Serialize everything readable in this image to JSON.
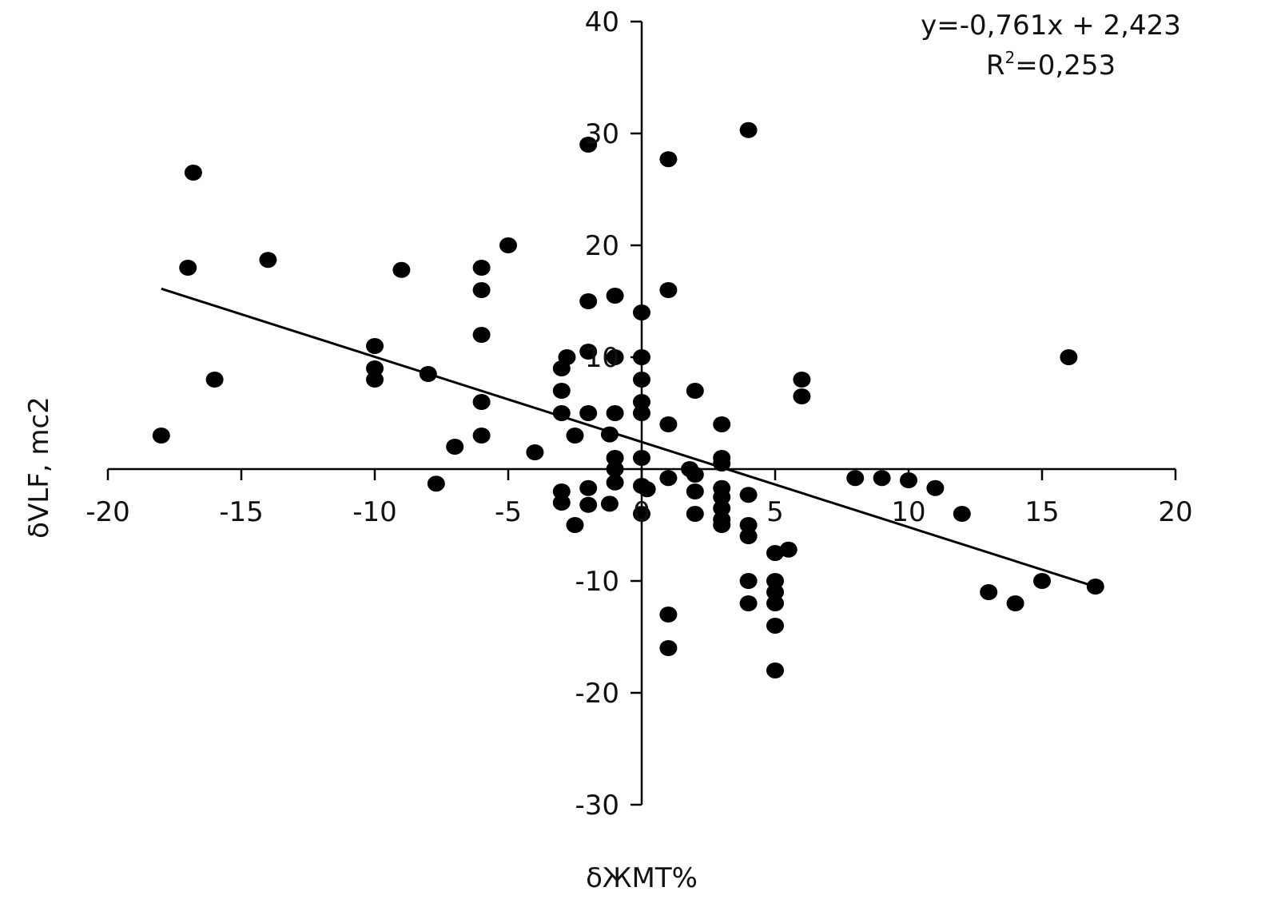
{
  "chart_data": {
    "type": "scatter",
    "title": "",
    "xlabel": "δЖМТ%",
    "ylabel": "δVLF, mc2",
    "xlim": [
      -20,
      20
    ],
    "ylim": [
      -30,
      40
    ],
    "x_ticks": [
      -20,
      -15,
      -10,
      -5,
      0,
      5,
      10,
      15,
      20
    ],
    "y_ticks": [
      -30,
      -20,
      -10,
      0,
      10,
      20,
      30,
      40
    ],
    "x_tick_labels": [
      "-20",
      "-15",
      "-10",
      "-5",
      "0",
      "5",
      "10",
      "15",
      "20"
    ],
    "y_tick_labels": [
      "-30",
      "-20",
      "-10",
      "10",
      "20",
      "30",
      "40"
    ],
    "grid": false,
    "annotations": {
      "equation": "y=-0,761x + 2,423",
      "r_squared_prefix": "R",
      "r_squared_exp": "2",
      "r_squared_value": "=0,253"
    },
    "trendline": {
      "slope": -0.761,
      "intercept": 2.423,
      "x_range": [
        -18,
        17
      ]
    },
    "series": [
      {
        "name": "data",
        "points": [
          [
            -18,
            3
          ],
          [
            -17,
            18
          ],
          [
            -16.8,
            26.5
          ],
          [
            -16,
            8
          ],
          [
            -14,
            18.7
          ],
          [
            -10,
            11
          ],
          [
            -10,
            9
          ],
          [
            -10,
            8
          ],
          [
            -9,
            17.8
          ],
          [
            -8,
            8.5
          ],
          [
            -7.7,
            -1.3
          ],
          [
            -7,
            2
          ],
          [
            -6,
            18
          ],
          [
            -6,
            16
          ],
          [
            -6,
            12
          ],
          [
            -6,
            6
          ],
          [
            -6,
            3
          ],
          [
            -5,
            20
          ],
          [
            -4,
            1.5
          ],
          [
            -3,
            9
          ],
          [
            -3,
            7
          ],
          [
            -3,
            5
          ],
          [
            -3,
            -2
          ],
          [
            -3,
            -3
          ],
          [
            -2.8,
            10
          ],
          [
            -2.5,
            3
          ],
          [
            -2.5,
            -5
          ],
          [
            -2,
            29
          ],
          [
            -2,
            15
          ],
          [
            -2,
            10.5
          ],
          [
            -2,
            5
          ],
          [
            -2,
            -1.7
          ],
          [
            -2,
            -3.2
          ],
          [
            -1.2,
            3.1
          ],
          [
            -1.2,
            -3.1
          ],
          [
            -1,
            15.5
          ],
          [
            -1,
            10
          ],
          [
            -1,
            5
          ],
          [
            -1,
            1
          ],
          [
            -1,
            0
          ],
          [
            -1,
            -1.2
          ],
          [
            0,
            14
          ],
          [
            0,
            10
          ],
          [
            0,
            8
          ],
          [
            0,
            6
          ],
          [
            0,
            5
          ],
          [
            0,
            1
          ],
          [
            0,
            -1.5
          ],
          [
            0,
            -4
          ],
          [
            0.2,
            -1.8
          ],
          [
            1,
            27.7
          ],
          [
            1,
            16
          ],
          [
            1,
            4
          ],
          [
            1,
            -0.8
          ],
          [
            1,
            -13
          ],
          [
            1,
            -16
          ],
          [
            1.8,
            0
          ],
          [
            2,
            7
          ],
          [
            2,
            -0.5
          ],
          [
            2,
            -2
          ],
          [
            2,
            -4
          ],
          [
            3,
            4
          ],
          [
            3,
            1
          ],
          [
            3,
            0.5
          ],
          [
            3,
            -1.7
          ],
          [
            3,
            -2.5
          ],
          [
            3,
            -3.5
          ],
          [
            3,
            -4.5
          ],
          [
            3,
            -5
          ],
          [
            4,
            30.3
          ],
          [
            4,
            -2.3
          ],
          [
            4,
            -5
          ],
          [
            4,
            -6
          ],
          [
            4,
            -10
          ],
          [
            4,
            -12
          ],
          [
            5,
            -7.5
          ],
          [
            5,
            -10
          ],
          [
            5,
            -11
          ],
          [
            5,
            -12
          ],
          [
            5,
            -14
          ],
          [
            5,
            -18
          ],
          [
            5.5,
            -7.2
          ],
          [
            6,
            8
          ],
          [
            6,
            6.5
          ],
          [
            8,
            -0.8
          ],
          [
            9,
            -0.8
          ],
          [
            10,
            -1
          ],
          [
            11,
            -1.7
          ],
          [
            12,
            -4
          ],
          [
            13,
            -11
          ],
          [
            14,
            -12
          ],
          [
            15,
            -10
          ],
          [
            16,
            10
          ],
          [
            17,
            -10.5
          ]
        ]
      }
    ]
  }
}
